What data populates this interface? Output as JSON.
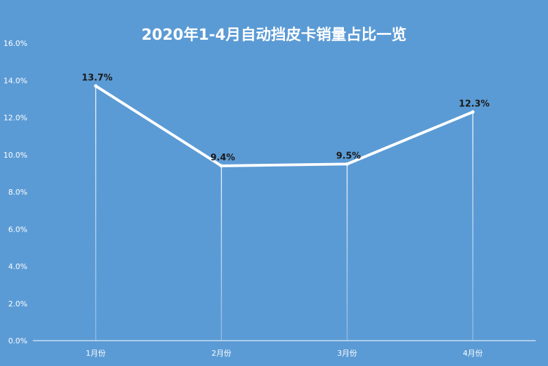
{
  "chart_data": {
    "type": "line",
    "title": "2020年1-4月自动挡皮卡销量占比一览",
    "categories": [
      "1月份",
      "2月份",
      "3月份",
      "4月份"
    ],
    "series": [
      {
        "values": [
          13.7,
          9.4,
          9.5,
          12.3
        ]
      }
    ],
    "data_labels": [
      "13.7%",
      "9.4%",
      "9.5%",
      "12.3%"
    ],
    "y_ticks": [
      0,
      2,
      4,
      6,
      8,
      10,
      12,
      14,
      16
    ],
    "y_tick_labels": [
      "0.0%",
      "2.0%",
      "4.0%",
      "6.0%",
      "8.0%",
      "10.0%",
      "12.0%",
      "14.0%",
      "16.0%"
    ],
    "ylim": [
      0,
      16
    ],
    "grid": false,
    "drop_lines": true
  },
  "colors": {
    "background": "#5b9bd5",
    "line": "#ffffff",
    "text": "#ffffff",
    "data_label": "#1a1a1a"
  }
}
